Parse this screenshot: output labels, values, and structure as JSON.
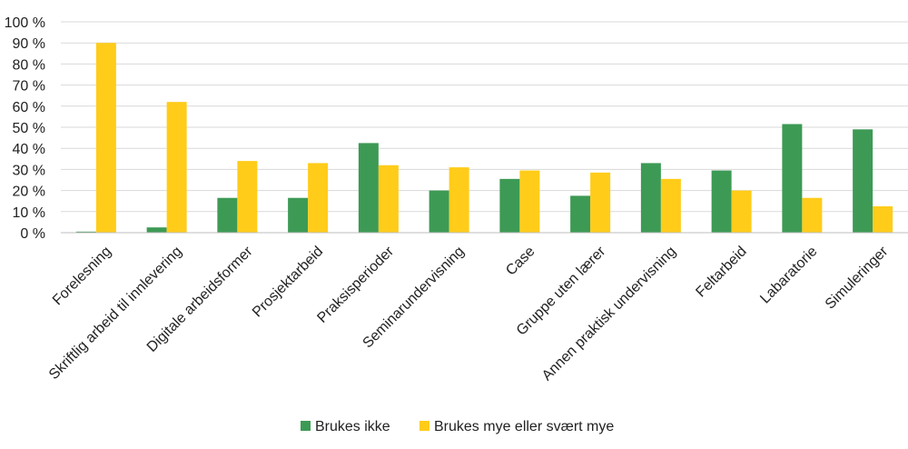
{
  "chart_data": {
    "type": "bar",
    "categories": [
      "Forelesning",
      "Skriftlig arbeid til innlevering",
      "Digitale arbeidsformer",
      "Prosjektarbeid",
      "Praksisperioder",
      "Seminarundervisning",
      "Case",
      "Gruppe uten lærer",
      "Annen praktisk undervisning",
      "Feltarbeid",
      "Labaratorie",
      "Simuleringer"
    ],
    "series": [
      {
        "name": "Brukes ikke",
        "color": "#3d9a55",
        "values": [
          0.5,
          2.5,
          16.5,
          16.5,
          42.5,
          20,
          25.5,
          17.5,
          33,
          29.5,
          51.5,
          49
        ]
      },
      {
        "name": "Brukes mye eller svært mye",
        "color": "#ffcc1a",
        "values": [
          90,
          62,
          34,
          33,
          32,
          31,
          29.5,
          28.5,
          25.5,
          20,
          16.5,
          12.5
        ]
      }
    ],
    "yticks": [
      "0 %",
      "10 %",
      "20 %",
      "30 %",
      "40 %",
      "50 %",
      "60 %",
      "70 %",
      "80 %",
      "90 %",
      "100 %"
    ],
    "ylim": [
      0,
      100
    ],
    "grid": true,
    "legend_position": "bottom-center"
  }
}
